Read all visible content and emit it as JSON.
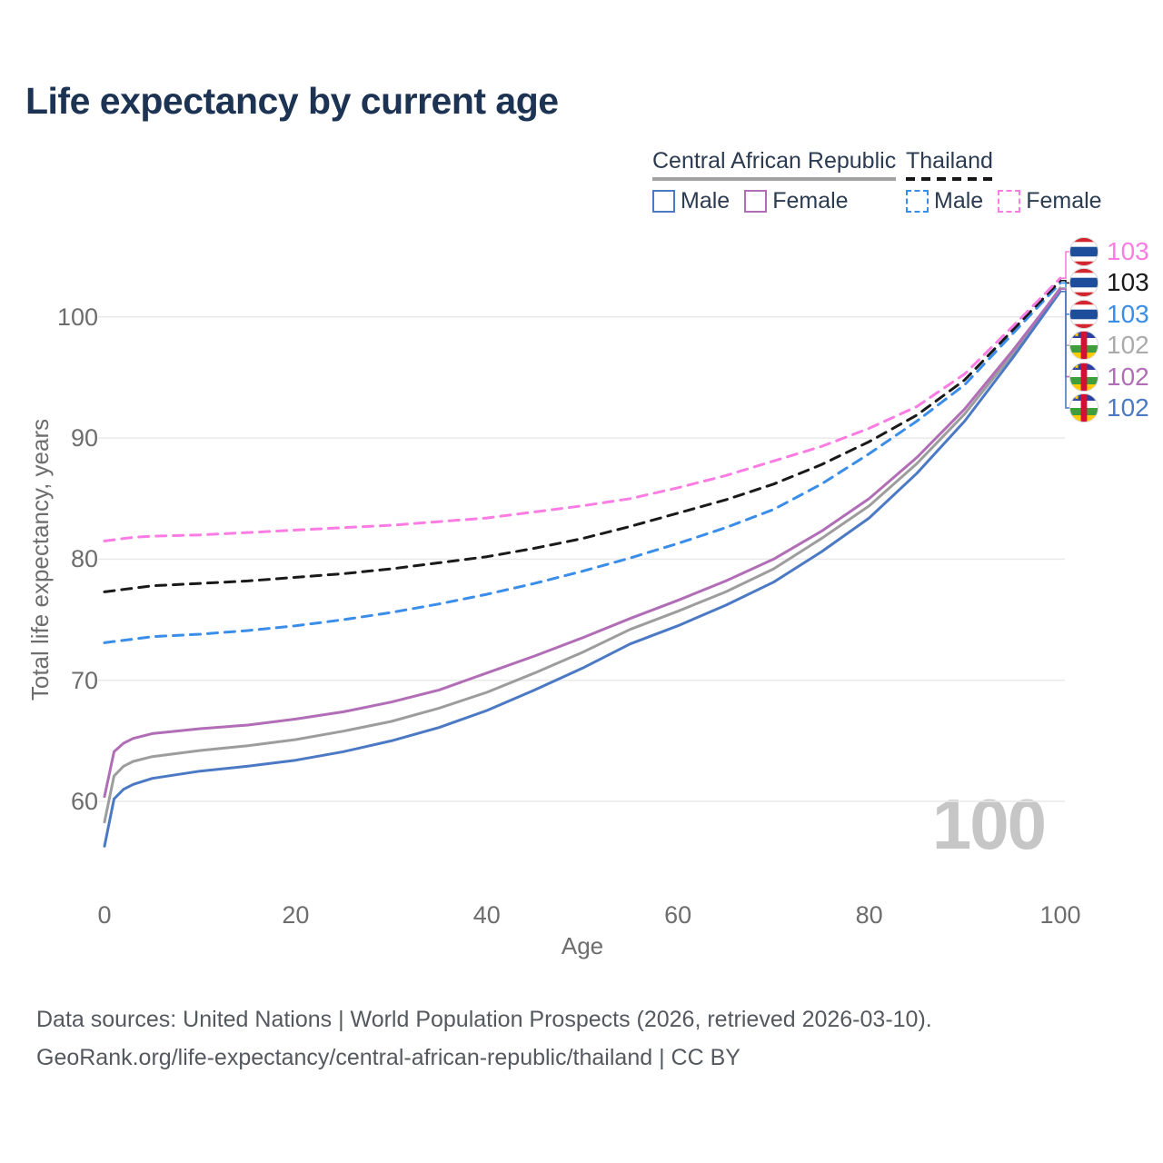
{
  "title": "Life expectancy by current age",
  "watermark_age": "100",
  "legend": {
    "groups": [
      {
        "label": "Central African Republic",
        "line_style": "solid",
        "items": [
          {
            "label": "Male",
            "color": "#4b79c4"
          },
          {
            "label": "Female",
            "color": "#b16db6"
          }
        ]
      },
      {
        "label": "Thailand",
        "line_style": "dashed",
        "items": [
          {
            "label": "Male",
            "color": "#3a8de8"
          },
          {
            "label": "Female",
            "color": "#fc7ce3"
          }
        ]
      }
    ]
  },
  "axes": {
    "y_title": "Total life expectancy, years",
    "x_title": "Age",
    "y_ticks": [
      60,
      70,
      80,
      90,
      100
    ],
    "x_ticks": [
      0,
      20,
      40,
      60,
      80,
      100
    ]
  },
  "right_labels": [
    {
      "series": "th_female",
      "value": "103"
    },
    {
      "series": "th_both",
      "value": "103"
    },
    {
      "series": "th_male",
      "value": "103"
    },
    {
      "series": "car_both",
      "value": "102"
    },
    {
      "series": "car_female",
      "value": "102"
    },
    {
      "series": "car_male",
      "value": "102"
    }
  ],
  "footer": {
    "line1": "Data sources: United Nations | World Population Prospects (2026, retrieved 2026-03-10).",
    "line2": "GeoRank.org/life-expectancy/central-african-republic/thailand | CC BY"
  },
  "chart_data": {
    "type": "line",
    "title": "Life expectancy by current age",
    "xlabel": "Age",
    "ylabel": "Total life expectancy, years",
    "x_range": [
      0,
      100
    ],
    "y_ticks_shown": [
      60,
      70,
      80,
      90,
      100
    ],
    "grid": "horizontal-only",
    "ages": [
      0,
      1,
      2,
      3,
      5,
      10,
      15,
      20,
      25,
      30,
      35,
      40,
      45,
      50,
      55,
      60,
      65,
      70,
      75,
      80,
      85,
      90,
      95,
      100
    ],
    "series": [
      {
        "key": "car_male",
        "name": "Central African Republic — Male",
        "country": "Central African Republic",
        "sex": "Male",
        "flag": "cf",
        "color": "#4b79c4",
        "label_color": "#4b79c4",
        "dashed": false,
        "values": [
          56.3,
          60.2,
          61.0,
          61.4,
          61.9,
          62.5,
          62.9,
          63.4,
          64.1,
          65.0,
          66.1,
          67.5,
          69.2,
          71.0,
          73.0,
          74.5,
          76.2,
          78.1,
          80.6,
          83.4,
          87.1,
          91.4,
          96.6,
          102.1
        ]
      },
      {
        "key": "car_female",
        "name": "Central African Republic — Female",
        "country": "Central African Republic",
        "sex": "Female",
        "flag": "cf",
        "color": "#b16db6",
        "label_color": "#b16db6",
        "dashed": false,
        "values": [
          60.4,
          64.1,
          64.8,
          65.2,
          65.6,
          66.0,
          66.3,
          66.8,
          67.4,
          68.2,
          69.2,
          70.6,
          72.0,
          73.5,
          75.1,
          76.6,
          78.2,
          80.0,
          82.3,
          85.0,
          88.4,
          92.4,
          97.2,
          102.3
        ]
      },
      {
        "key": "car_both",
        "name": "Central African Republic — Both sexes",
        "country": "Central African Republic",
        "sex": "Both",
        "flag": "cf",
        "color": "#9d9d9d",
        "label_color": "#ababab",
        "dashed": false,
        "values": [
          58.3,
          62.1,
          62.9,
          63.3,
          63.7,
          64.2,
          64.6,
          65.1,
          65.8,
          66.6,
          67.7,
          69.0,
          70.6,
          72.3,
          74.2,
          75.7,
          77.3,
          79.2,
          81.7,
          84.4,
          87.9,
          92.0,
          96.9,
          102.4
        ]
      },
      {
        "key": "th_male",
        "name": "Thailand — Male",
        "country": "Thailand",
        "sex": "Male",
        "flag": "th",
        "color": "#3a8de8",
        "label_color": "#3a8de8",
        "dashed": true,
        "values": [
          73.1,
          73.2,
          73.3,
          73.4,
          73.6,
          73.8,
          74.1,
          74.5,
          75.0,
          75.6,
          76.3,
          77.1,
          78.0,
          79.0,
          80.1,
          81.3,
          82.6,
          84.1,
          86.2,
          88.7,
          91.4,
          94.4,
          98.6,
          102.8
        ]
      },
      {
        "key": "th_both",
        "name": "Thailand — Both sexes",
        "country": "Thailand",
        "sex": "Both",
        "flag": "th",
        "color": "#1a1a1a",
        "label_color": "#1a1a1a",
        "dashed": true,
        "values": [
          77.3,
          77.4,
          77.5,
          77.6,
          77.8,
          78.0,
          78.2,
          78.5,
          78.8,
          79.2,
          79.7,
          80.2,
          80.9,
          81.7,
          82.7,
          83.8,
          84.9,
          86.2,
          87.8,
          89.7,
          91.9,
          94.8,
          98.9,
          103.0
        ]
      },
      {
        "key": "th_female",
        "name": "Thailand — Female",
        "country": "Thailand",
        "sex": "Female",
        "flag": "th",
        "color": "#fc7ce3",
        "label_color": "#fc7ce3",
        "dashed": true,
        "values": [
          81.5,
          81.6,
          81.7,
          81.8,
          81.9,
          82.0,
          82.2,
          82.4,
          82.6,
          82.8,
          83.1,
          83.4,
          83.9,
          84.4,
          85.0,
          85.9,
          86.9,
          88.1,
          89.3,
          90.8,
          92.6,
          95.3,
          99.2,
          103.2
        ]
      }
    ]
  }
}
